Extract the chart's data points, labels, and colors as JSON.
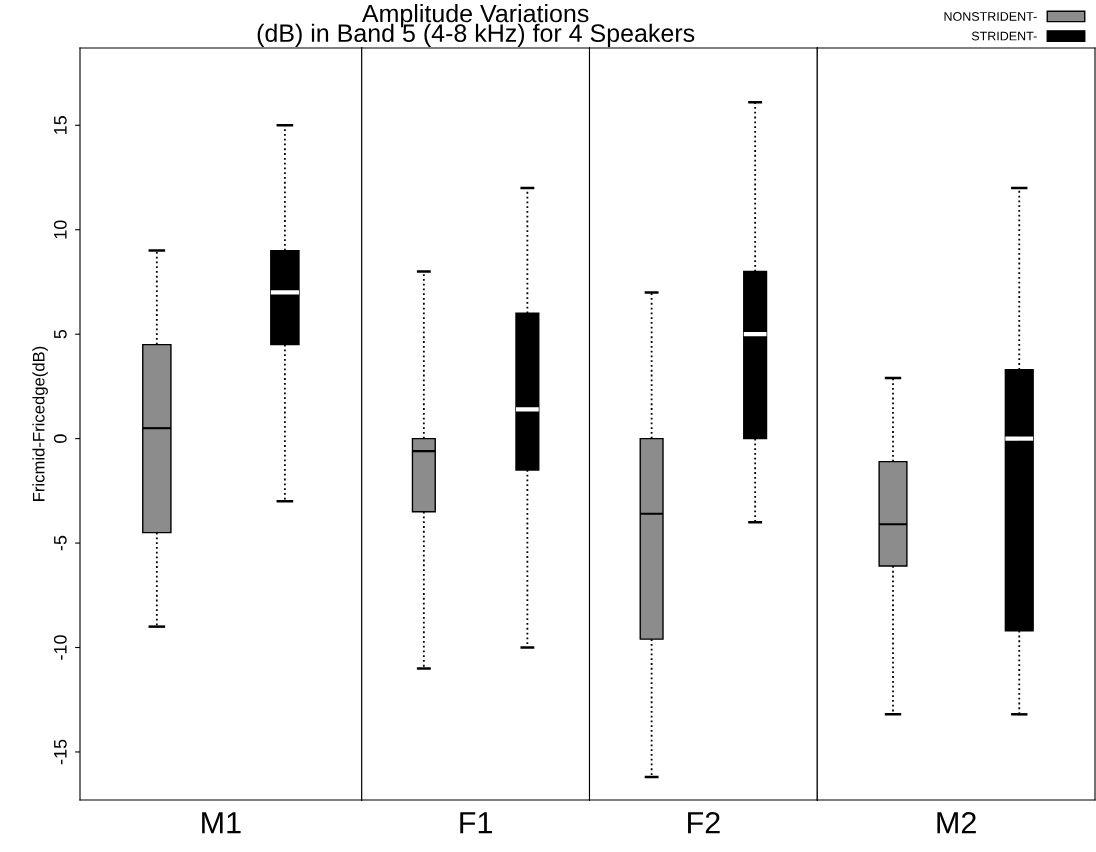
{
  "chart_data": [
    {
      "type": "box",
      "ylabel": "Fricmid-Fricedge(dB)",
      "categories": [
        "M1"
      ],
      "ylim": [
        -17.3,
        18.7
      ],
      "yticks": [
        -15,
        -10,
        -5,
        0,
        5,
        10,
        15
      ],
      "series": [
        {
          "color": "#8c8c8c",
          "boxes": [
            {
              "low": -9,
              "q1": -4.5,
              "median": 0.5,
              "q3": 4.5,
              "high": 9
            }
          ]
        },
        {
          "color": "#000000",
          "boxes": [
            {
              "low": -3,
              "q1": 4.5,
              "median": 7,
              "q3": 9,
              "high": 15
            }
          ]
        }
      ]
    },
    {
      "type": "box",
      "title": "Amplitude Variations\n(dB) in Band 5 (4-8 kHz) for 4 Speakers",
      "categories": [
        "F1"
      ],
      "ylim": [
        -17.3,
        18.7
      ],
      "tick_labels": "x",
      "series": [
        {
          "color": "#8c8c8c",
          "boxes": [
            {
              "low": -11,
              "q1": -3.5,
              "median": -0.6,
              "q3": 0,
              "high": 8
            }
          ]
        },
        {
          "color": "#000000",
          "boxes": [
            {
              "low": -10,
              "q1": -1.5,
              "median": 1.4,
              "q3": 6,
              "high": 12
            }
          ]
        }
      ]
    },
    {
      "type": "box",
      "categories": [
        "F2"
      ],
      "ylim": [
        -17.3,
        18.7
      ],
      "tick_labels": "x",
      "series": [
        {
          "color": "#8c8c8c",
          "boxes": [
            {
              "low": -16.2,
              "q1": -9.6,
              "median": -3.6,
              "q3": 0,
              "high": 7
            }
          ]
        },
        {
          "color": "#000000",
          "boxes": [
            {
              "low": -4,
              "q1": 0,
              "median": 5,
              "q3": 8,
              "high": 16.1
            }
          ]
        }
      ]
    },
    {
      "type": "box",
      "categories": [
        "M2"
      ],
      "ylim": [
        -17.3,
        18.7
      ],
      "tick_labels": "x",
      "legend": "top right",
      "series": [
        {
          "name": "NONSTRIDENT-",
          "color": "#8c8c8c",
          "boxes": [
            {
              "low": -13.2,
              "q1": -6.1,
              "median": -4.1,
              "q3": -1.1,
              "high": 2.9
            }
          ]
        },
        {
          "name": "STRIDENT-",
          "color": "#000000",
          "boxes": [
            {
              "low": -13.2,
              "q1": -9.2,
              "median": 0,
              "q3": 3.3,
              "high": 12
            }
          ]
        }
      ]
    }
  ]
}
